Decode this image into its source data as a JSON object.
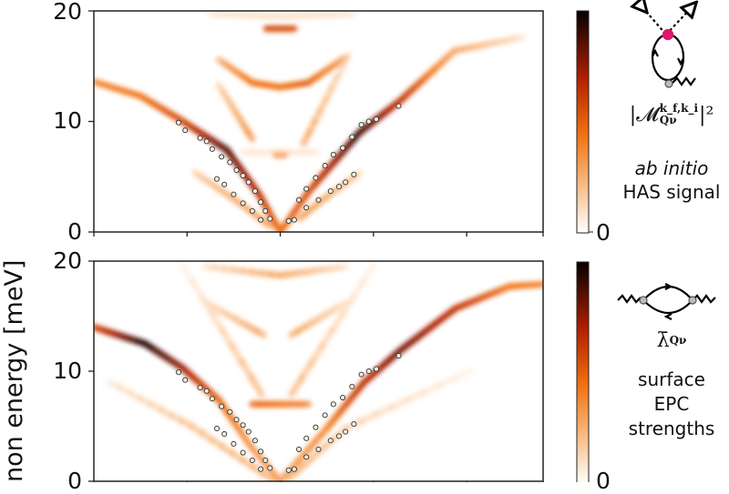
{
  "chart_data": [
    {
      "type": "heatmap",
      "panel": "top",
      "ylabel": "non energy [meV]",
      "ylim": [
        0,
        20
      ],
      "yticks": [
        "0",
        "10",
        "20"
      ],
      "xlim": [
        -2,
        2.82
      ],
      "colormap": [
        "#ffffff",
        "#f8b070",
        "#f07010",
        "#b02000",
        "#1a0000"
      ],
      "colorbar": {
        "min_label": "0",
        "legend_title": "ab initio",
        "legend_subtitle": "HAS signal",
        "quantity": {
          "base": "|𝓜",
          "sup": "k_f,k_i",
          "sub": "Qν",
          "tail": "|²"
        }
      },
      "bands": [
        {
          "points": [
            [
              -2,
              13.6
            ],
            [
              -1.5,
              12.3
            ],
            [
              -1.08,
              10.2
            ],
            [
              -0.57,
              7.4
            ],
            [
              -0.22,
              3.3
            ],
            [
              0,
              0
            ]
          ],
          "intensity": [
            0.45,
            0.5,
            0.6,
            0.9,
            0.7,
            0.5
          ]
        },
        {
          "points": [
            [
              0,
              0
            ],
            [
              0.31,
              3.7
            ],
            [
              0.85,
              9
            ],
            [
              1.29,
              11.9
            ],
            [
              1.87,
              16.4
            ],
            [
              2.59,
              17.6
            ]
          ],
          "intensity": [
            0.5,
            0.6,
            0.95,
            0.7,
            0.35,
            0.15
          ]
        },
        {
          "points": [
            [
              -0.92,
              5.4
            ],
            [
              -0.5,
              3
            ],
            [
              -0.1,
              0.5
            ]
          ],
          "intensity": [
            0.2,
            0.3,
            0.35
          ]
        },
        {
          "points": [
            [
              0.2,
              1.2
            ],
            [
              0.5,
              3.2
            ],
            [
              0.85,
              5.3
            ]
          ],
          "intensity": [
            0.35,
            0.3,
            0.2
          ]
        },
        {
          "points": [
            [
              -0.66,
              15.6
            ],
            [
              -0.3,
              13.5
            ],
            [
              0,
              13.1
            ],
            [
              0.3,
              13.5
            ],
            [
              0.7,
              15.8
            ]
          ],
          "intensity": [
            0.3,
            0.5,
            0.5,
            0.55,
            0.35
          ]
        },
        {
          "points": [
            [
              -0.15,
              18.4
            ],
            [
              0.15,
              18.4
            ]
          ],
          "intensity": [
            0.6,
            0.6
          ]
        },
        {
          "points": [
            [
              -0.75,
              19.7
            ],
            [
              0,
              19.5
            ],
            [
              0.8,
              19.7
            ]
          ],
          "intensity": [
            0.12,
            0.15,
            0.12
          ]
        },
        {
          "points": [
            [
              -0.66,
              13.3
            ],
            [
              -0.3,
              8.4
            ]
          ],
          "intensity": [
            0.2,
            0.4
          ]
        },
        {
          "points": [
            [
              0.25,
              8
            ],
            [
              0.73,
              16
            ]
          ],
          "intensity": [
            0.35,
            0.15
          ]
        },
        {
          "points": [
            [
              -0.05,
              7
            ],
            [
              0.05,
              7
            ]
          ],
          "intensity": [
            0.45,
            0.45
          ]
        },
        {
          "points": [
            [
              -0.4,
              7.2
            ],
            [
              0.4,
              7.2
            ]
          ],
          "intensity": [
            0.12,
            0.12
          ]
        }
      ]
    },
    {
      "type": "heatmap",
      "panel": "bottom",
      "ylim": [
        0,
        20
      ],
      "yticks": [
        "0",
        "10",
        "20"
      ],
      "xlim": [
        -2,
        2.82
      ],
      "colormap": [
        "#ffffff",
        "#f8b070",
        "#f07010",
        "#b02000",
        "#1a0000"
      ],
      "colorbar": {
        "min_label": "0",
        "legend_title": "surface",
        "legend_mid": "EPC",
        "legend_subtitle": "strengths",
        "quantity": {
          "base": "λ̄",
          "sub": "Qν"
        }
      },
      "bands": [
        {
          "points": [
            [
              -2,
              14
            ],
            [
              -1.45,
              12.5
            ],
            [
              -1.05,
              10.3
            ],
            [
              -0.66,
              7.4
            ],
            [
              -0.32,
              3.2
            ],
            [
              0,
              0
            ]
          ],
          "intensity": [
            0.6,
            1.0,
            0.8,
            0.55,
            0.4,
            0.35
          ]
        },
        {
          "points": [
            [
              0,
              0
            ],
            [
              0.5,
              4.8
            ],
            [
              0.9,
              9
            ],
            [
              1.29,
              11.9
            ],
            [
              1.88,
              15.7
            ],
            [
              2.46,
              17.7
            ],
            [
              2.82,
              17.9
            ]
          ],
          "intensity": [
            0.35,
            0.45,
            0.7,
            0.85,
            0.7,
            0.5,
            0.45
          ]
        },
        {
          "points": [
            [
              -1.83,
              9
            ],
            [
              -0.95,
              5
            ],
            [
              -0.08,
              0.1
            ]
          ],
          "intensity": [
            0.12,
            0.25,
            0.3
          ]
        },
        {
          "points": [
            [
              2.04,
              10
            ],
            [
              0.7,
              4.8
            ],
            [
              0.1,
              0.3
            ]
          ],
          "intensity": [
            0.08,
            0.2,
            0.3
          ]
        },
        {
          "points": [
            [
              -0.8,
              19.5
            ],
            [
              0,
              18.7
            ],
            [
              0.7,
              19.5
            ]
          ],
          "intensity": [
            0.15,
            0.35,
            0.15
          ]
        },
        {
          "points": [
            [
              -0.79,
              16.2
            ],
            [
              -0.18,
              13.3
            ]
          ],
          "intensity": [
            0.15,
            0.35
          ]
        },
        {
          "points": [
            [
              0.12,
              13.3
            ],
            [
              0.7,
              16.2
            ]
          ],
          "intensity": [
            0.35,
            0.15
          ]
        },
        {
          "points": [
            [
              -1.05,
              19.6
            ],
            [
              -0.2,
              7.9
            ]
          ],
          "intensity": [
            0.08,
            0.3
          ]
        },
        {
          "points": [
            [
              0.12,
              7.9
            ],
            [
              1,
              19.6
            ]
          ],
          "intensity": [
            0.3,
            0.08
          ]
        },
        {
          "points": [
            [
              -0.3,
              7
            ],
            [
              0.3,
              7
            ]
          ],
          "intensity": [
            0.55,
            0.45
          ]
        }
      ]
    }
  ],
  "scatter_points": [
    [
      -1.09,
      9.9
    ],
    [
      -1.02,
      9.2
    ],
    [
      -0.86,
      8.5
    ],
    [
      -0.79,
      8.2
    ],
    [
      -0.73,
      7.5
    ],
    [
      -0.63,
      6.8
    ],
    [
      -0.54,
      6.3
    ],
    [
      -0.47,
      5.6
    ],
    [
      -0.4,
      5.1
    ],
    [
      -0.34,
      4.5
    ],
    [
      -0.27,
      3.7
    ],
    [
      -0.21,
      2.7
    ],
    [
      -0.16,
      1.9
    ],
    [
      -0.11,
      1.2
    ],
    [
      -0.68,
      4.8
    ],
    [
      -0.6,
      4.3
    ],
    [
      -0.5,
      3.4
    ],
    [
      -0.4,
      2.6
    ],
    [
      -0.3,
      1.9
    ],
    [
      -0.21,
      1.1
    ],
    [
      0.09,
      1.0
    ],
    [
      0.2,
      2.9
    ],
    [
      0.28,
      3.9
    ],
    [
      0.38,
      4.9
    ],
    [
      0.48,
      6.0
    ],
    [
      0.57,
      7.0
    ],
    [
      0.67,
      7.6
    ],
    [
      0.77,
      8.6
    ],
    [
      0.87,
      9.7
    ],
    [
      0.95,
      10.0
    ],
    [
      1.03,
      10.2
    ],
    [
      1.27,
      11.4
    ],
    [
      0.15,
      1.1
    ],
    [
      0.28,
      2.2
    ],
    [
      0.41,
      2.9
    ],
    [
      0.54,
      3.7
    ],
    [
      0.63,
      4.1
    ],
    [
      0.7,
      4.5
    ],
    [
      0.79,
      5.2
    ]
  ],
  "diagram_accent": "#e0156e"
}
